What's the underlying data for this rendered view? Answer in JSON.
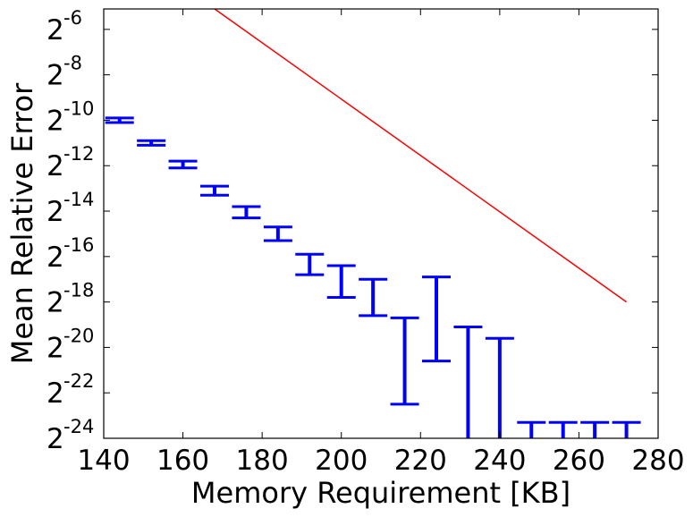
{
  "chart_data": {
    "type": "scatter",
    "title": "",
    "xlabel": "Memory Requirement [KB]",
    "ylabel": "Mean Relative Error",
    "xlim": [
      140,
      280
    ],
    "ylim_log2": [
      -24,
      -5.1
    ],
    "y_scale": "log2",
    "grid": false,
    "x_ticks": [
      "140",
      "160",
      "180",
      "200",
      "220",
      "240",
      "260",
      "280"
    ],
    "y_ticks": [
      {
        "base": "2",
        "exp": "-6"
      },
      {
        "base": "2",
        "exp": "-8"
      },
      {
        "base": "2",
        "exp": "-10"
      },
      {
        "base": "2",
        "exp": "-12"
      },
      {
        "base": "2",
        "exp": "-14"
      },
      {
        "base": "2",
        "exp": "-16"
      },
      {
        "base": "2",
        "exp": "-18"
      },
      {
        "base": "2",
        "exp": "-20"
      },
      {
        "base": "2",
        "exp": "-22"
      },
      {
        "base": "2",
        "exp": "-24"
      }
    ],
    "series": [
      {
        "type": "errorbar",
        "color": "#0000ff",
        "x": [
          144,
          152,
          160,
          168,
          176,
          184,
          192,
          200,
          208,
          216,
          224,
          232,
          240,
          248,
          256,
          264,
          272
        ],
        "y_low_log2": [
          -10.1,
          -11.1,
          -12.1,
          -13.3,
          -14.3,
          -15.3,
          -16.8,
          -17.8,
          -18.6,
          -22.5,
          -20.6,
          -24.5,
          -24.5,
          -24.5,
          -24.5,
          -24.5,
          -24.5
        ],
        "y_high_log2": [
          -9.9,
          -10.9,
          -11.8,
          -12.9,
          -13.8,
          -14.7,
          -15.9,
          -16.4,
          -17.0,
          -18.7,
          -16.9,
          -19.1,
          -19.6,
          -23.3,
          -23.3,
          -23.3,
          -23.3
        ]
      },
      {
        "type": "line",
        "color": "#ff0000",
        "x": [
          168,
          272
        ],
        "y_log2": [
          -5.1,
          -18.0
        ]
      }
    ]
  }
}
